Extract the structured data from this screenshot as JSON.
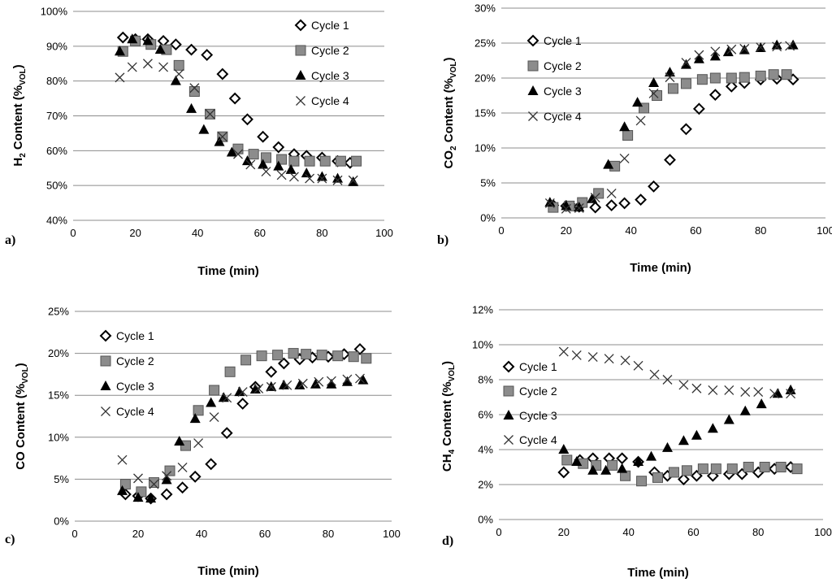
{
  "chart_data": [
    {
      "type": "scatter",
      "panel_label": "a)",
      "ylabel_parts": [
        "H",
        "2",
        " Content (%",
        "VOL",
        ")"
      ],
      "xlabel": "Time (min)",
      "xlim": [
        0,
        100
      ],
      "xticks": [
        0,
        20,
        40,
        60,
        80,
        100
      ],
      "ylim": [
        40,
        100
      ],
      "yticks": [
        40,
        50,
        60,
        70,
        80,
        90,
        100
      ],
      "ytick_suffix": "%",
      "legend_position": "top-right",
      "series": [
        {
          "name": "Cycle 1",
          "marker": "diamond",
          "x": [
            16,
            20,
            24,
            29,
            33,
            38,
            43,
            48,
            52,
            56,
            61,
            66,
            71,
            75,
            80,
            85,
            89
          ],
          "y": [
            92.5,
            92,
            92,
            91.5,
            90.5,
            89,
            87.5,
            82,
            75,
            69,
            64,
            61,
            59,
            58.5,
            58,
            57,
            56.5
          ]
        },
        {
          "name": "Cycle 2",
          "marker": "square",
          "x": [
            16,
            20,
            25,
            30,
            34,
            39,
            44,
            48,
            53,
            58,
            62,
            67,
            71,
            76,
            81,
            86,
            91
          ],
          "y": [
            88.5,
            91.5,
            90.5,
            89,
            84.5,
            77,
            70.5,
            64,
            60.5,
            59,
            58,
            57.5,
            57,
            57,
            57,
            57,
            57
          ]
        },
        {
          "name": "Cycle 3",
          "marker": "triangle",
          "x": [
            15,
            19,
            24,
            28,
            33,
            38,
            42,
            47,
            51,
            56,
            61,
            66,
            70,
            75,
            80,
            85,
            90
          ],
          "y": [
            88.5,
            92,
            91.5,
            89,
            80,
            72,
            66,
            62.5,
            59.5,
            57,
            56,
            55.5,
            54.5,
            53.5,
            52.5,
            52,
            51
          ]
        },
        {
          "name": "Cycle 4",
          "marker": "x",
          "x": [
            15,
            19,
            24,
            29,
            34,
            39,
            44,
            48,
            53,
            57,
            62,
            67,
            71,
            76,
            80,
            85,
            90
          ],
          "y": [
            81,
            84,
            85,
            84,
            82,
            78,
            70.5,
            64,
            59,
            56,
            54,
            53,
            52.5,
            52,
            52,
            51.5,
            51.5
          ]
        }
      ]
    },
    {
      "type": "scatter",
      "panel_label": "b)",
      "ylabel_parts": [
        "CO",
        "2",
        " Content (%",
        "VOL",
        ")"
      ],
      "xlabel": "Time  (min)",
      "xlim": [
        0,
        100
      ],
      "xticks": [
        0,
        20,
        40,
        60,
        80,
        100
      ],
      "ylim": [
        0,
        30
      ],
      "yticks": [
        0,
        5,
        10,
        15,
        20,
        25,
        30
      ],
      "ytick_suffix": "%",
      "legend_position": "top-left",
      "series": [
        {
          "name": "Cycle 1",
          "marker": "diamond",
          "x": [
            16,
            20,
            24,
            29,
            34,
            38,
            43,
            47,
            52,
            57,
            61,
            66,
            71,
            75,
            80,
            85,
            90
          ],
          "y": [
            1.8,
            1.7,
            1.6,
            1.5,
            1.8,
            2.1,
            2.6,
            4.5,
            8.3,
            12.7,
            15.6,
            17.6,
            18.8,
            19.3,
            19.8,
            19.9,
            19.8
          ]
        },
        {
          "name": "Cycle 2",
          "marker": "square",
          "x": [
            16,
            21,
            25,
            30,
            35,
            39,
            44,
            48,
            53,
            57,
            62,
            66,
            71,
            75,
            80,
            84,
            88
          ],
          "y": [
            1.5,
            1.7,
            2.2,
            3.5,
            7.4,
            11.8,
            15.7,
            17.5,
            18.5,
            19.2,
            19.8,
            20,
            20,
            20.1,
            20.3,
            20.5,
            20.5
          ]
        },
        {
          "name": "Cycle 3",
          "marker": "triangle",
          "x": [
            15,
            20,
            24,
            28,
            33,
            38,
            42,
            47,
            52,
            57,
            61,
            66,
            70,
            75,
            80,
            85,
            90
          ],
          "y": [
            2.2,
            1.7,
            1.5,
            2.7,
            7.6,
            13,
            16.5,
            19.3,
            20.8,
            21.9,
            22.7,
            23.1,
            23.7,
            24,
            24.3,
            24.7,
            24.7
          ]
        },
        {
          "name": "Cycle 4",
          "marker": "x",
          "x": [
            15,
            20,
            24,
            29,
            34,
            38,
            43,
            47,
            52,
            57,
            61,
            66,
            71,
            75,
            80,
            85,
            89
          ],
          "y": [
            2.1,
            1.3,
            1.4,
            2.9,
            3.5,
            8.5,
            13.9,
            17.8,
            20.1,
            22.2,
            23.3,
            23.8,
            24.1,
            24.2,
            24.4,
            24.5,
            24.6
          ]
        }
      ]
    },
    {
      "type": "scatter",
      "panel_label": "c)",
      "ylabel_parts": [
        "CO Content (%",
        "VOL",
        ")"
      ],
      "xlabel": "Time (min)",
      "xlim": [
        0,
        100
      ],
      "xticks": [
        0,
        20,
        40,
        60,
        80,
        100
      ],
      "ylim": [
        0,
        25
      ],
      "yticks": [
        0,
        5,
        10,
        15,
        20,
        25
      ],
      "ytick_suffix": "%",
      "legend_position": "top-left",
      "series": [
        {
          "name": "Cycle 1",
          "marker": "diamond",
          "x": [
            16,
            20,
            24,
            29,
            34,
            38,
            43,
            48,
            53,
            57,
            62,
            66,
            71,
            75,
            80,
            85,
            90
          ],
          "y": [
            3.2,
            3,
            2.7,
            3.2,
            4,
            5.3,
            6.8,
            10.5,
            14,
            16,
            17.8,
            18.8,
            19.3,
            19.5,
            19.6,
            19.9,
            20.5
          ]
        },
        {
          "name": "Cycle 2",
          "marker": "square",
          "x": [
            16,
            21,
            25,
            30,
            35,
            39,
            44,
            49,
            54,
            59,
            64,
            69,
            73,
            78,
            83,
            88,
            92
          ],
          "y": [
            4.4,
            3.5,
            4.6,
            6,
            9,
            13.2,
            15.6,
            17.8,
            19.2,
            19.7,
            19.8,
            20,
            19.9,
            19.8,
            19.7,
            19.6,
            19.4
          ]
        },
        {
          "name": "Cycle 3",
          "marker": "triangle",
          "x": [
            15,
            20,
            24,
            29,
            33,
            38,
            43,
            47,
            52,
            57,
            62,
            66,
            71,
            76,
            81,
            86,
            91
          ],
          "y": [
            3.6,
            2.8,
            2.7,
            4.9,
            9.5,
            12.2,
            14.1,
            14.7,
            15.4,
            15.7,
            16,
            16.2,
            16.2,
            16.3,
            16.3,
            16.6,
            16.8
          ]
        },
        {
          "name": "Cycle 4",
          "marker": "x",
          "x": [
            15,
            20,
            25,
            29,
            34,
            39,
            44,
            48,
            53,
            58,
            62,
            67,
            72,
            77,
            81,
            86,
            90
          ],
          "y": [
            7.3,
            5.1,
            4.4,
            5.4,
            6.4,
            9.3,
            12.4,
            14.7,
            15.4,
            15.8,
            16,
            16.2,
            16.4,
            16.6,
            16.7,
            16.9,
            17
          ]
        }
      ]
    },
    {
      "type": "scatter",
      "panel_label": "d)",
      "ylabel_parts": [
        "CH",
        "4",
        " Content (%",
        "VOL",
        ")"
      ],
      "xlabel": "Time (min)",
      "xlim": [
        0,
        100
      ],
      "xticks": [
        0,
        20,
        40,
        60,
        80,
        100
      ],
      "ylim": [
        0,
        12
      ],
      "yticks": [
        0,
        2,
        4,
        6,
        8,
        10,
        12
      ],
      "ytick_suffix": "%",
      "legend_position": "left",
      "series": [
        {
          "name": "Cycle 1",
          "marker": "diamond",
          "x": [
            20,
            25,
            29,
            34,
            38,
            43,
            48,
            52,
            57,
            61,
            66,
            71,
            75,
            80,
            85,
            90
          ],
          "y": [
            2.7,
            3.4,
            3.5,
            3.5,
            3.5,
            3.3,
            2.7,
            2.5,
            2.3,
            2.5,
            2.5,
            2.6,
            2.6,
            2.7,
            2.9,
            3
          ]
        },
        {
          "name": "Cycle 2",
          "marker": "square",
          "x": [
            21,
            26,
            30,
            35,
            39,
            44,
            49,
            54,
            58,
            63,
            67,
            72,
            77,
            82,
            87,
            92
          ],
          "y": [
            3.4,
            3.2,
            3.1,
            3.1,
            2.5,
            2.2,
            2.4,
            2.7,
            2.8,
            2.9,
            2.9,
            2.9,
            3,
            3,
            3,
            2.9
          ]
        },
        {
          "name": "Cycle 3",
          "marker": "triangle",
          "x": [
            20,
            24,
            29,
            33,
            38,
            43,
            47,
            52,
            57,
            61,
            66,
            71,
            76,
            81,
            86,
            90
          ],
          "y": [
            4,
            3.3,
            2.8,
            2.8,
            2.9,
            3.3,
            3.6,
            4.1,
            4.5,
            4.8,
            5.2,
            5.7,
            6.2,
            6.6,
            7.2,
            7.4
          ]
        },
        {
          "name": "Cycle 4",
          "marker": "x",
          "x": [
            20,
            24,
            29,
            34,
            39,
            43,
            48,
            52,
            57,
            61,
            66,
            71,
            76,
            80,
            85,
            90
          ],
          "y": [
            9.6,
            9.4,
            9.3,
            9.2,
            9.1,
            8.8,
            8.3,
            8,
            7.7,
            7.5,
            7.4,
            7.4,
            7.3,
            7.3,
            7.2,
            7.2
          ]
        }
      ]
    }
  ]
}
